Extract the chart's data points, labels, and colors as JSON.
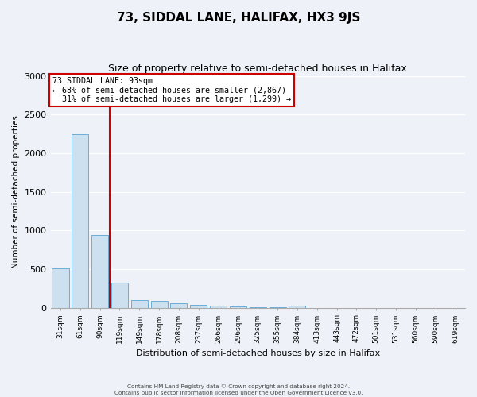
{
  "title": "73, SIDDAL LANE, HALIFAX, HX3 9JS",
  "subtitle": "Size of property relative to semi-detached houses in Halifax",
  "xlabel": "Distribution of semi-detached houses by size in Halifax",
  "ylabel": "Number of semi-detached properties",
  "footnote1": "Contains HM Land Registry data © Crown copyright and database right 2024.",
  "footnote2": "Contains public sector information licensed under the Open Government Licence v3.0.",
  "bar_labels": [
    "31sqm",
    "61sqm",
    "90sqm",
    "119sqm",
    "149sqm",
    "178sqm",
    "208sqm",
    "237sqm",
    "266sqm",
    "296sqm",
    "325sqm",
    "355sqm",
    "384sqm",
    "413sqm",
    "443sqm",
    "472sqm",
    "501sqm",
    "531sqm",
    "560sqm",
    "590sqm",
    "619sqm"
  ],
  "bar_values": [
    510,
    2250,
    940,
    320,
    100,
    90,
    55,
    40,
    25,
    15,
    10,
    7,
    30,
    0,
    0,
    0,
    0,
    0,
    0,
    0,
    0
  ],
  "bar_color": "#cce0f0",
  "bar_edge_color": "#6aaed6",
  "pct_smaller": 68,
  "pct_smaller_count": "2,867",
  "pct_larger": 31,
  "pct_larger_count": "1,299",
  "vline_color": "#cc0000",
  "annotation_box_edge_color": "#cc0000",
  "ylim": [
    0,
    3000
  ],
  "background_color": "#eef2f8",
  "grid_color": "#ffffff",
  "title_fontsize": 11,
  "subtitle_fontsize": 9
}
